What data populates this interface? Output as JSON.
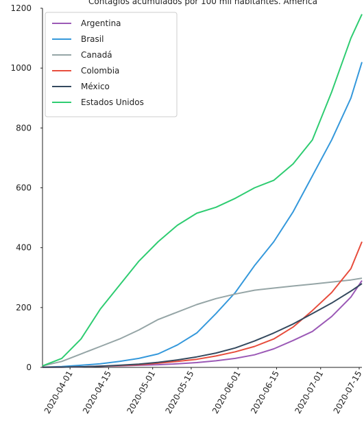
{
  "chart_data": {
    "type": "line",
    "title": "Contagios acumulados por 100 mil habitantes. América",
    "x": [
      "2020-03-22",
      "2020-03-29",
      "2020-04-05",
      "2020-04-12",
      "2020-04-19",
      "2020-04-26",
      "2020-05-03",
      "2020-05-10",
      "2020-05-17",
      "2020-05-24",
      "2020-05-31",
      "2020-06-07",
      "2020-06-14",
      "2020-06-21",
      "2020-06-28",
      "2020-07-05",
      "2020-07-12",
      "2020-07-16"
    ],
    "series": [
      {
        "name": "Argentina",
        "color": "#9b59b6",
        "values": [
          0.5,
          1,
          2,
          4,
          5,
          7,
          9,
          12,
          16,
          22,
          30,
          42,
          62,
          90,
          120,
          170,
          235,
          290
        ]
      },
      {
        "name": "Brasil",
        "color": "#3498db",
        "values": [
          1,
          3,
          7,
          12,
          20,
          30,
          45,
          75,
          115,
          180,
          250,
          340,
          420,
          520,
          640,
          760,
          900,
          1020
        ]
      },
      {
        "name": "Canadá",
        "color": "#95a5a6",
        "values": [
          5,
          20,
          45,
          70,
          95,
          125,
          160,
          185,
          210,
          230,
          245,
          258,
          265,
          272,
          278,
          285,
          292,
          298
        ]
      },
      {
        "name": "Colombia",
        "color": "#e74c3c",
        "values": [
          0.5,
          1,
          2,
          4,
          6,
          9,
          14,
          20,
          27,
          38,
          52,
          70,
          95,
          135,
          190,
          250,
          330,
          420
        ]
      },
      {
        "name": "México",
        "color": "#34495e",
        "values": [
          0.5,
          1,
          2,
          4,
          7,
          11,
          17,
          25,
          35,
          48,
          65,
          88,
          115,
          145,
          180,
          215,
          255,
          280
        ]
      },
      {
        "name": "Estados Unidos",
        "color": "#2ecc71",
        "values": [
          5,
          30,
          95,
          195,
          275,
          355,
          420,
          475,
          515,
          535,
          565,
          600,
          625,
          680,
          760,
          920,
          1100,
          1180
        ]
      }
    ],
    "xlim": [
      "2020-03-22",
      "2020-07-16"
    ],
    "xticks": [
      "2020-04-01",
      "2020-04-15",
      "2020-05-01",
      "2020-05-15",
      "2020-06-01",
      "2020-06-15",
      "2020-07-01",
      "2020-07-15"
    ],
    "ylim": [
      0,
      1200
    ],
    "yticks": [
      0,
      200,
      400,
      600,
      800,
      1000,
      1200
    ],
    "legend": "upper left"
  }
}
